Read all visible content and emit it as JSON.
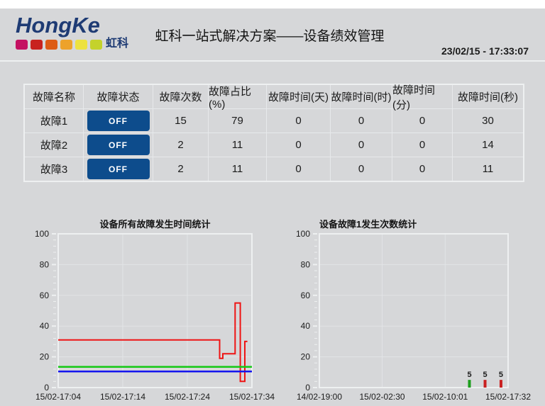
{
  "header": {
    "logo_text": "HongKe",
    "logo_sub": "虹科",
    "logo_squares": [
      "#c41162",
      "#c8221f",
      "#dd5b16",
      "#eda22a",
      "#ede23f",
      "#c4d22b"
    ],
    "title": "虹科一站式解决方案——设备绩效管理",
    "timestamp": "23/02/15 - 17:33:07"
  },
  "table": {
    "columns": [
      "故障名称",
      "故障状态",
      "故障次数",
      "故障占比(%)",
      "故障时间(天)",
      "故障时间(时)",
      "故障时间(分)",
      "故障时间(秒)"
    ],
    "rows": [
      [
        "故障1",
        "OFF",
        "15",
        "79",
        "0",
        "0",
        "0",
        "30"
      ],
      [
        "故障2",
        "OFF",
        "2",
        "11",
        "0",
        "0",
        "0",
        "14"
      ],
      [
        "故障3",
        "OFF",
        "2",
        "11",
        "0",
        "0",
        "0",
        "11"
      ]
    ]
  },
  "chart_data": [
    {
      "type": "line",
      "title": "设备所有故障发生时间统计",
      "title_align": "center",
      "ylim": [
        0,
        100
      ],
      "yticks": [
        0,
        20,
        40,
        60,
        80,
        100
      ],
      "xmin": 0,
      "xmax": 30,
      "xticks": [
        {
          "pos": 0,
          "label": "15/02-17:04"
        },
        {
          "pos": 10,
          "label": "15/02-17:14"
        },
        {
          "pos": 20,
          "label": "15/02-17:24"
        },
        {
          "pos": 30,
          "label": "15/02-17:34"
        }
      ],
      "series": [
        {
          "color": "#ee1414",
          "width": 2,
          "points": [
            [
              0,
              31
            ],
            [
              25,
              31
            ],
            [
              25,
              19
            ],
            [
              25.5,
              19
            ],
            [
              25.5,
              22
            ],
            [
              27.4,
              22
            ],
            [
              27.4,
              55
            ],
            [
              28.2,
              55
            ],
            [
              28.2,
              4
            ],
            [
              28.9,
              4
            ],
            [
              28.9,
              30
            ],
            [
              29.3,
              30
            ]
          ]
        },
        {
          "color": "#14c914",
          "width": 2.5,
          "points": [
            [
              0,
              13.5
            ],
            [
              30,
              13.5
            ]
          ]
        },
        {
          "color": "#1414ee",
          "width": 2.5,
          "points": [
            [
              0,
              10.5
            ],
            [
              30,
              10.5
            ]
          ]
        }
      ]
    },
    {
      "type": "bar",
      "title": "设备故障1发生次数统计",
      "title_align": "left",
      "ylim": [
        0,
        100
      ],
      "yticks": [
        0,
        20,
        40,
        60,
        80,
        100
      ],
      "xmin": 0,
      "xmax": 1352,
      "xticks": [
        {
          "pos": 0,
          "label": "14/02-19:00"
        },
        {
          "pos": 450,
          "label": "15/02-02:30"
        },
        {
          "pos": 901,
          "label": "15/02-10:01"
        },
        {
          "pos": 1352,
          "label": "15/02-17:32"
        }
      ],
      "bars": [
        {
          "pos": 1075,
          "value": 5,
          "label": "5",
          "color": "#1d9e1d"
        },
        {
          "pos": 1187,
          "value": 5,
          "label": "5",
          "color": "#c92121"
        },
        {
          "pos": 1301,
          "value": 5,
          "label": "5",
          "color": "#c92121"
        }
      ]
    }
  ]
}
